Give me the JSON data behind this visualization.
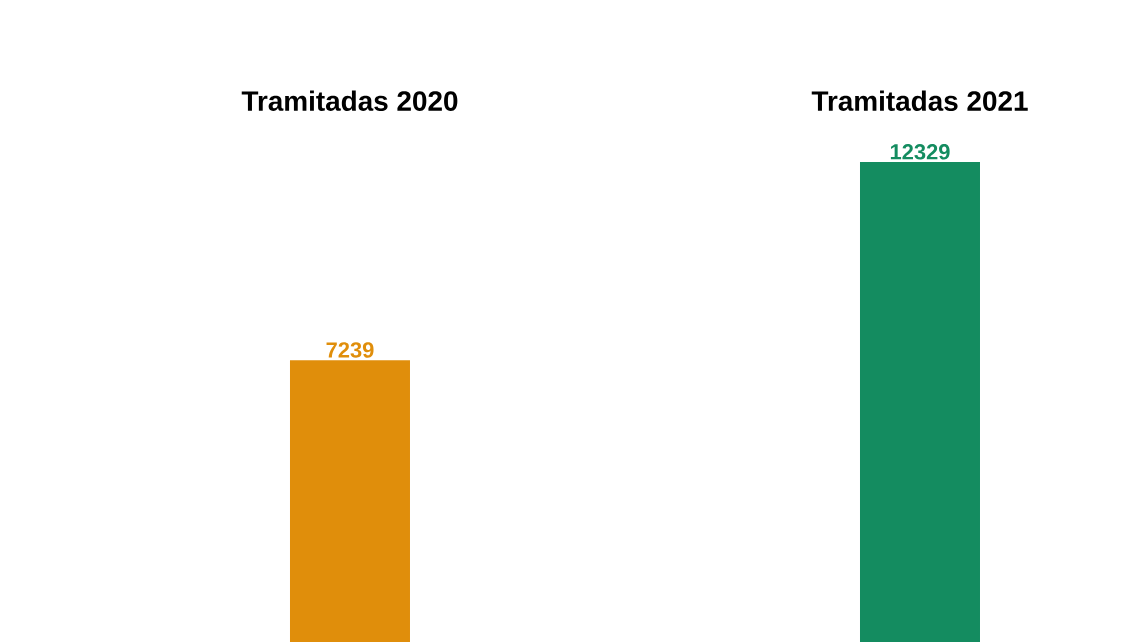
{
  "chart_data": {
    "type": "bar",
    "categories": [
      "Tramitadas 2020",
      "Tramitadas 2021"
    ],
    "values": [
      7239,
      12329
    ],
    "colors": [
      "#e08e0b",
      "#148c60"
    ],
    "ylim": [
      0,
      12329
    ],
    "data_labels": true
  }
}
